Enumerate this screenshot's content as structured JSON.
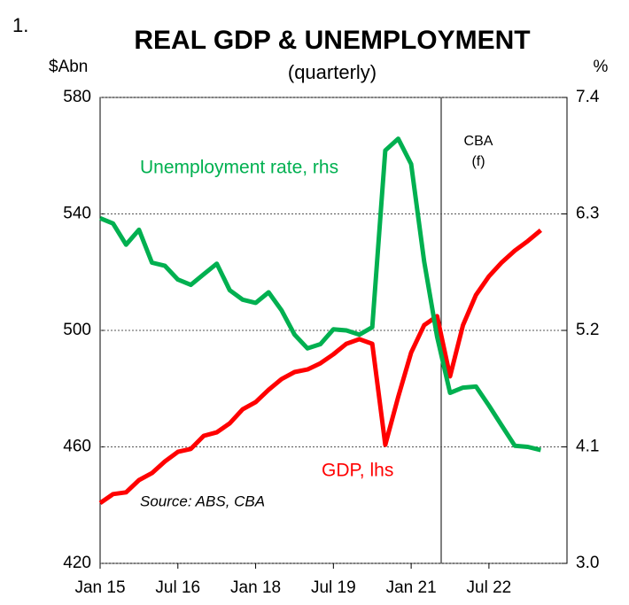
{
  "chart_number": "1.",
  "chart_data": {
    "type": "line",
    "title": "REAL GDP & UNEMPLOYMENT",
    "subtitle": "(quarterly)",
    "y_label": "$Abn",
    "y2_label": "%",
    "source": "Source: ABS, CBA",
    "annotations": [
      "CBA",
      "(f)"
    ],
    "categories": [
      "Jan 15",
      null,
      null,
      null,
      null,
      null,
      "Jul 16",
      null,
      null,
      null,
      null,
      null,
      "Jan 18",
      null,
      null,
      null,
      null,
      null,
      "Jul 19",
      null,
      null,
      null,
      null,
      null,
      "Jan 21",
      null,
      null,
      null,
      null,
      null,
      "Jul 22",
      null,
      null,
      null,
      null
    ],
    "series": [
      {
        "name": "GDP, lhs",
        "color": "#ff0000",
        "axis": "y",
        "values": [
          440.7,
          443.8,
          444.4,
          448.6,
          451.0,
          455.0,
          458.3,
          459.3,
          463.8,
          465.0,
          468.1,
          472.9,
          475.4,
          479.6,
          483.3,
          485.7,
          486.6,
          488.7,
          491.8,
          495.4,
          497.0,
          495.4,
          460.7,
          477.2,
          492.4,
          501.8,
          504.9,
          484.2,
          501.8,
          512.2,
          518.6,
          523.4,
          527.4,
          530.7,
          534.4
        ]
      },
      {
        "name": "Unemployment rate, rhs",
        "color": "#00b050",
        "axis": "y2",
        "values": [
          6.26,
          6.21,
          6.01,
          6.15,
          5.84,
          5.81,
          5.68,
          5.63,
          5.73,
          5.83,
          5.58,
          5.49,
          5.46,
          5.56,
          5.39,
          5.16,
          5.03,
          5.07,
          5.21,
          5.2,
          5.16,
          5.23,
          6.9,
          7.01,
          6.77,
          5.85,
          5.14,
          4.61,
          4.66,
          4.67,
          4.49,
          4.3,
          4.11,
          4.1,
          4.07
        ]
      }
    ],
    "ylim": [
      420,
      580
    ],
    "yticks": [
      420,
      460,
      500,
      540,
      580
    ],
    "y2lim": [
      3,
      7.4
    ],
    "y2ticks": [
      {
        "value": 3,
        "label": "3.0"
      },
      4.1,
      5.2,
      6.3,
      7.4
    ],
    "grid": true
  }
}
